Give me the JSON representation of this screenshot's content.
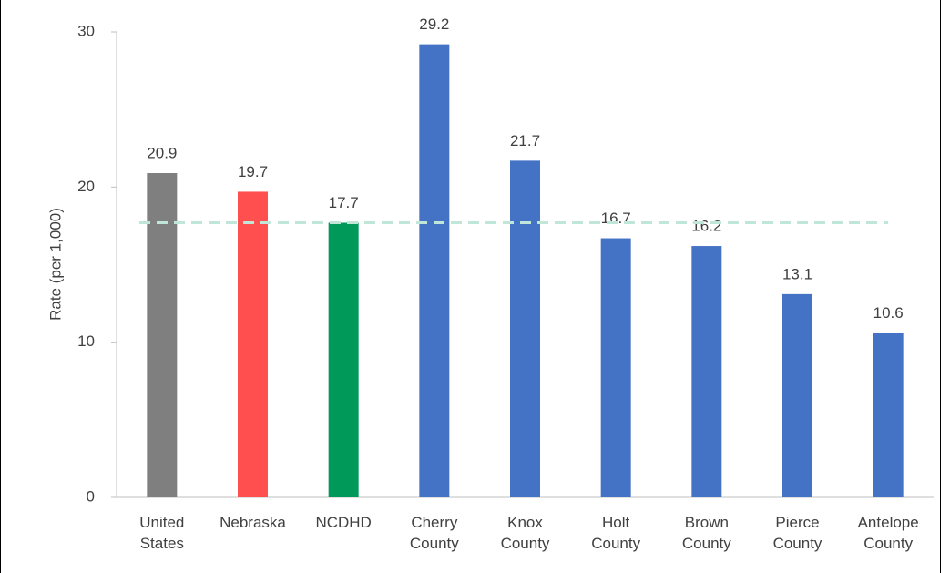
{
  "chart_data": {
    "type": "bar",
    "y_axis_title": "Rate (per 1,000)",
    "categories": [
      "United States",
      "Nebraska",
      "NCDHD",
      "Cherry County",
      "Knox County",
      "Holt County",
      "Brown County",
      "Pierce County",
      "Antelope County"
    ],
    "values": [
      20.9,
      19.7,
      17.7,
      29.2,
      21.7,
      16.7,
      16.2,
      13.1,
      10.6
    ],
    "colors": [
      "#7f7f7f",
      "#ff4f4f",
      "#00995a",
      "#4472c4",
      "#4472c4",
      "#4472c4",
      "#4472c4",
      "#4472c4",
      "#4472c4"
    ],
    "reference_line": {
      "value": 17.7,
      "color": "#bfe6d6"
    },
    "ylim": [
      0,
      30
    ],
    "yticks": [
      0,
      10,
      20,
      30
    ],
    "grid": false
  }
}
